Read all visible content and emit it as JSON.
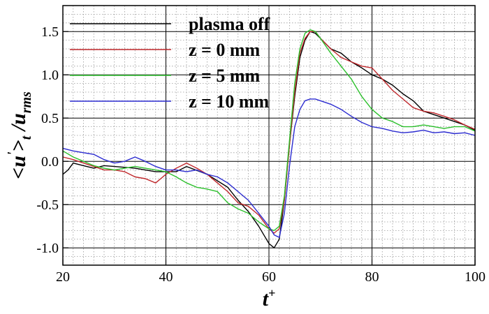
{
  "chart_data": {
    "type": "line",
    "title": "",
    "xlabel": {
      "main": "t",
      "sup": "+"
    },
    "ylabel": {
      "p1": "<u",
      "prime": "'",
      "p2": ">",
      "sub1": "t",
      "p3": " /u",
      "sub2": "rms"
    },
    "xlim": [
      20,
      100
    ],
    "ylim": [
      -1.2,
      1.8
    ],
    "xticks": [
      20,
      40,
      60,
      80,
      100
    ],
    "xtick_labels": [
      "20",
      "40",
      "60",
      "80",
      "100"
    ],
    "yticks": [
      -1.0,
      -0.5,
      0.0,
      0.5,
      1.0,
      1.5
    ],
    "ytick_labels": [
      "-1.0",
      "-0.5",
      "0.0",
      "0.5",
      "1.0",
      "1.5"
    ],
    "grid": {
      "major": true,
      "minor": true,
      "style": "dotted minor, solid major"
    },
    "legend": {
      "position": "top-left"
    },
    "series": [
      {
        "name": "plasma off",
        "color": "#000000",
        "x": [
          20,
          21,
          22,
          24,
          26,
          28,
          30,
          34,
          38,
          42,
          44,
          48,
          52,
          54,
          56,
          58,
          60,
          61,
          62,
          63,
          64,
          65,
          66,
          67,
          68,
          69,
          70,
          72,
          74,
          76,
          78,
          80,
          82,
          84,
          86,
          88,
          90,
          94,
          98,
          100
        ],
        "values": [
          -0.15,
          -0.1,
          -0.02,
          -0.05,
          -0.08,
          -0.05,
          -0.06,
          -0.08,
          -0.12,
          -0.12,
          -0.06,
          -0.15,
          -0.3,
          -0.45,
          -0.58,
          -0.75,
          -0.95,
          -1.0,
          -0.9,
          -0.45,
          0.2,
          0.75,
          1.2,
          1.4,
          1.5,
          1.48,
          1.42,
          1.3,
          1.25,
          1.15,
          1.08,
          1.0,
          0.95,
          0.88,
          0.78,
          0.7,
          0.58,
          0.5,
          0.42,
          0.36
        ]
      },
      {
        "name": "z = 0 mm",
        "color": "#c0282c",
        "x": [
          20,
          22,
          24,
          26,
          28,
          30,
          32,
          34,
          36,
          38,
          40,
          42,
          44,
          46,
          48,
          50,
          52,
          54,
          56,
          58,
          60,
          61,
          62,
          63,
          64,
          65,
          66,
          67,
          68,
          69,
          70,
          72,
          74,
          76,
          78,
          80,
          82,
          84,
          86,
          88,
          90,
          92,
          94,
          96,
          98,
          100
        ],
        "values": [
          0.05,
          0.02,
          -0.02,
          -0.06,
          -0.1,
          -0.1,
          -0.12,
          -0.18,
          -0.2,
          -0.25,
          -0.15,
          -0.08,
          -0.02,
          -0.08,
          -0.15,
          -0.25,
          -0.35,
          -0.48,
          -0.52,
          -0.62,
          -0.78,
          -0.83,
          -0.78,
          -0.45,
          0.2,
          0.8,
          1.25,
          1.42,
          1.5,
          1.5,
          1.42,
          1.3,
          1.2,
          1.15,
          1.1,
          1.08,
          0.95,
          0.82,
          0.72,
          0.62,
          0.58,
          0.56,
          0.52,
          0.48,
          0.42,
          0.37
        ]
      },
      {
        "name": "z = 5 mm",
        "color": "#2cc02c",
        "x": [
          20,
          22,
          24,
          26,
          28,
          30,
          32,
          34,
          36,
          38,
          40,
          42,
          44,
          46,
          48,
          50,
          52,
          54,
          56,
          58,
          60,
          61,
          62,
          63,
          64,
          65,
          66,
          67,
          68,
          69,
          70,
          72,
          74,
          76,
          78,
          80,
          82,
          84,
          86,
          88,
          90,
          92,
          94,
          96,
          98,
          100
        ],
        "values": [
          0.12,
          0.05,
          0.0,
          -0.05,
          -0.08,
          -0.1,
          -0.08,
          -0.06,
          -0.08,
          -0.1,
          -0.12,
          -0.18,
          -0.25,
          -0.3,
          -0.32,
          -0.35,
          -0.48,
          -0.55,
          -0.6,
          -0.7,
          -0.78,
          -0.8,
          -0.75,
          -0.4,
          0.25,
          0.9,
          1.3,
          1.48,
          1.52,
          1.5,
          1.42,
          1.25,
          1.1,
          0.95,
          0.75,
          0.6,
          0.5,
          0.46,
          0.4,
          0.4,
          0.42,
          0.4,
          0.38,
          0.4,
          0.4,
          0.35
        ]
      },
      {
        "name": "z = 10 mm",
        "color": "#2c2cd0",
        "x": [
          20,
          22,
          24,
          26,
          28,
          30,
          32,
          34,
          36,
          38,
          40,
          42,
          44,
          46,
          48,
          50,
          52,
          54,
          56,
          58,
          60,
          61,
          62,
          63,
          64,
          65,
          66,
          67,
          68,
          69,
          70,
          72,
          74,
          76,
          78,
          80,
          82,
          84,
          86,
          88,
          90,
          92,
          94,
          96,
          98,
          100
        ],
        "values": [
          0.15,
          0.12,
          0.1,
          0.08,
          0.02,
          -0.02,
          0.0,
          0.05,
          0.0,
          -0.06,
          -0.1,
          -0.1,
          -0.12,
          -0.1,
          -0.15,
          -0.18,
          -0.25,
          -0.35,
          -0.45,
          -0.6,
          -0.75,
          -0.85,
          -0.88,
          -0.6,
          -0.05,
          0.4,
          0.6,
          0.7,
          0.72,
          0.72,
          0.7,
          0.66,
          0.6,
          0.52,
          0.45,
          0.4,
          0.38,
          0.35,
          0.33,
          0.34,
          0.36,
          0.33,
          0.34,
          0.32,
          0.33,
          0.3
        ]
      }
    ]
  }
}
